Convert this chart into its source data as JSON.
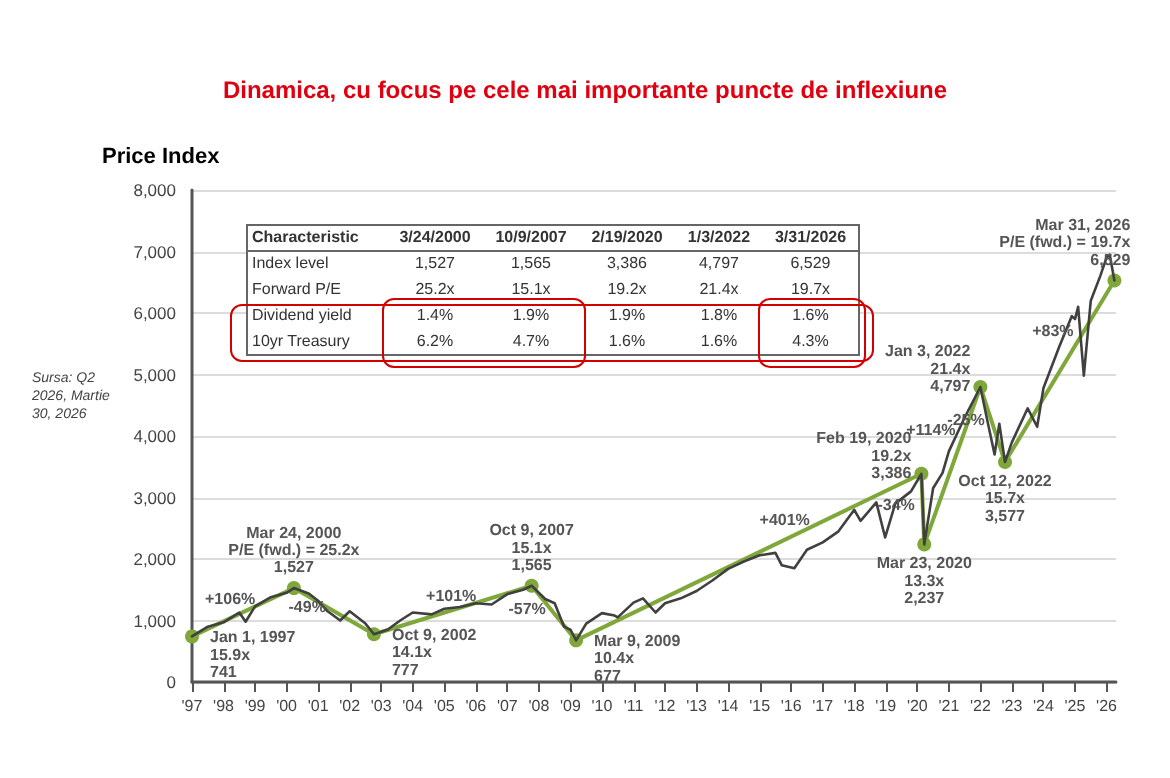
{
  "chart_data": {
    "type": "line",
    "title": "Dinamica, cu focus pe cele mai importante puncte de inflexiune",
    "subtitle": "Price Index",
    "xlim": [
      1997,
      2026.3
    ],
    "ylim": [
      0,
      8000
    ],
    "xticks": [
      {
        "value": 1997,
        "label": "'97"
      },
      {
        "value": 1998,
        "label": "'98"
      },
      {
        "value": 1999,
        "label": "'99"
      },
      {
        "value": 2000,
        "label": "'00"
      },
      {
        "value": 2001,
        "label": "'01"
      },
      {
        "value": 2002,
        "label": "'02"
      },
      {
        "value": 2003,
        "label": "'03"
      },
      {
        "value": 2004,
        "label": "'04"
      },
      {
        "value": 2005,
        "label": "'05"
      },
      {
        "value": 2006,
        "label": "'06"
      },
      {
        "value": 2007,
        "label": "'07"
      },
      {
        "value": 2008,
        "label": "'08"
      },
      {
        "value": 2009,
        "label": "'09"
      },
      {
        "value": 2010,
        "label": "'10"
      },
      {
        "value": 2011,
        "label": "'11"
      },
      {
        "value": 2012,
        "label": "'12"
      },
      {
        "value": 2013,
        "label": "'13"
      },
      {
        "value": 2014,
        "label": "'14"
      },
      {
        "value": 2015,
        "label": "'15"
      },
      {
        "value": 2016,
        "label": "'16"
      },
      {
        "value": 2017,
        "label": "'17"
      },
      {
        "value": 2018,
        "label": "'18"
      },
      {
        "value": 2019,
        "label": "'19"
      },
      {
        "value": 2020,
        "label": "'20"
      },
      {
        "value": 2021,
        "label": "'21"
      },
      {
        "value": 2022,
        "label": "'22"
      },
      {
        "value": 2023,
        "label": "'23"
      },
      {
        "value": 2024,
        "label": "'24"
      },
      {
        "value": 2025,
        "label": "'25"
      },
      {
        "value": 2026,
        "label": "'26"
      }
    ],
    "yticks": [
      0,
      {
        "value": 1000,
        "label": "1,000"
      },
      {
        "value": 2000,
        "label": "2,000"
      },
      {
        "value": 3000,
        "label": "3,000"
      },
      {
        "value": 4000,
        "label": "4,000"
      },
      {
        "value": 5000,
        "label": "5,000"
      },
      {
        "value": 6000,
        "label": "6,000"
      },
      {
        "value": 7000,
        "label": "7,000"
      },
      {
        "value": 8000,
        "label": "8,000"
      }
    ],
    "grid": "y",
    "series": [
      {
        "color": "#404040",
        "marker": "none",
        "x": [
          1997.0,
          1997.5,
          1998.0,
          1998.5,
          1998.7,
          1999.0,
          1999.5,
          2000.0,
          2000.23,
          2000.7,
          2001.0,
          2001.3,
          2001.7,
          2002.0,
          2002.5,
          2002.77,
          2003.2,
          2003.6,
          2004.0,
          2004.6,
          2005.0,
          2005.5,
          2006.0,
          2006.5,
          2007.0,
          2007.5,
          2007.77,
          2008.2,
          2008.5,
          2008.8,
          2009.0,
          2009.18,
          2009.5,
          2010.0,
          2010.4,
          2010.5,
          2011.0,
          2011.3,
          2011.7,
          2012.0,
          2012.5,
          2013.0,
          2013.5,
          2014.0,
          2014.5,
          2015.0,
          2015.5,
          2015.7,
          2016.1,
          2016.5,
          2017.0,
          2017.5,
          2018.0,
          2018.2,
          2018.7,
          2018.98,
          2019.3,
          2019.8,
          2020.13,
          2020.22,
          2020.5,
          2020.8,
          2021.0,
          2021.5,
          2022.0,
          2022.2,
          2022.45,
          2022.6,
          2022.78,
          2023.0,
          2023.5,
          2023.8,
          2024.0,
          2024.5,
          2024.9,
          2025.0,
          2025.1,
          2025.28,
          2025.5,
          2025.8,
          2026.0,
          2026.1,
          2026.25
        ],
        "values": [
          741,
          900,
          970,
          1130,
          980,
          1230,
          1380,
          1450,
          1527,
          1440,
          1320,
          1150,
          1000,
          1150,
          950,
          777,
          850,
          1000,
          1130,
          1100,
          1190,
          1220,
          1280,
          1260,
          1430,
          1500,
          1565,
          1350,
          1280,
          900,
          850,
          677,
          950,
          1120,
          1080,
          1050,
          1290,
          1360,
          1130,
          1280,
          1360,
          1480,
          1650,
          1840,
          1960,
          2060,
          2100,
          1900,
          1850,
          2150,
          2270,
          2450,
          2800,
          2620,
          2920,
          2350,
          2900,
          3100,
          3386,
          2237,
          3150,
          3400,
          3750,
          4300,
          4797,
          4300,
          3700,
          4200,
          3577,
          3900,
          4450,
          4150,
          4780,
          5450,
          5950,
          5900,
          6100,
          4980,
          6200,
          6600,
          6900,
          6950,
          6529
        ]
      },
      {
        "color": "#7fa73a",
        "marker": "circle",
        "x": [
          1997.0,
          2000.23,
          2002.77,
          2007.77,
          2009.18,
          2020.13,
          2020.22,
          2022.0,
          2022.78,
          2026.25
        ],
        "values": [
          741,
          1527,
          777,
          1565,
          677,
          3386,
          2237,
          4797,
          3577,
          6529
        ]
      }
    ],
    "annotations": [
      {
        "text": "Jan 1, 1997\n15.9x\n741",
        "x": 1997.0,
        "y": 741
      },
      {
        "text": "Mar 24, 2000\nP/E (fwd.) = 25.2x\n1,527",
        "x": 2000.23,
        "y": 1527
      },
      {
        "text": "Oct 9, 2002\n14.1x\n777",
        "x": 2002.77,
        "y": 777
      },
      {
        "text": "Oct 9, 2007\n15.1x\n1,565",
        "x": 2007.77,
        "y": 1565
      },
      {
        "text": "Mar 9, 2009\n10.4x\n677",
        "x": 2009.18,
        "y": 677
      },
      {
        "text": "Feb 19, 2020\n19.2x\n3,386",
        "x": 2020.13,
        "y": 3386
      },
      {
        "text": "Mar 23, 2020\n13.3x\n2,237",
        "x": 2020.22,
        "y": 2237
      },
      {
        "text": "Jan 3, 2022\n21.4x\n4,797",
        "x": 2022.0,
        "y": 4797
      },
      {
        "text": "Oct 12, 2022\n15.7x\n3,577",
        "x": 2022.78,
        "y": 3577
      },
      {
        "text": "Mar 31, 2026\nP/E (fwd.) = 19.7x\n6,529",
        "x": 2026.25,
        "y": 6529
      },
      "+106%",
      "-49%",
      "+101%",
      "-57%",
      "+401%",
      "-34%",
      "+114%",
      "-25%",
      "+83%",
      "Characteristic\t3/24/2000\t10/9/2007\t2/19/2020\t1/3/2022\t3/31/2026",
      "Index level\t1,527\t1,565\t3,386\t4,797\t6,529",
      "Forward P/E\t25.2x\t15.1x\t19.2x\t21.4x\t19.7x",
      "Dividend yield\t1.4%\t1.9%\t1.9%\t1.8%\t1.6%",
      "10yr Treasury\t6.2%\t4.7%\t1.6%\t1.6%\t4.3%",
      "Sursa: Q2 2026, Martie 30, 2026"
    ]
  }
}
